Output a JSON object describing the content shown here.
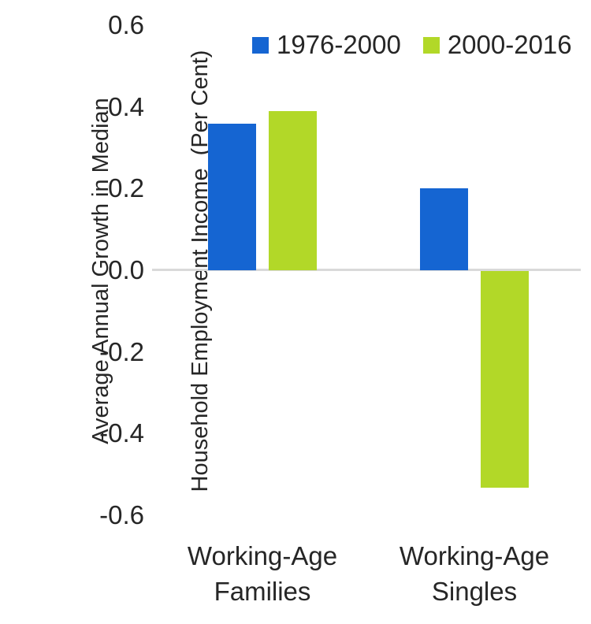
{
  "chart_data": {
    "type": "bar",
    "title": "",
    "ylabel": "Average Annual Growth in Median Household Employment Income (Per Cent)",
    "ylabel_lines": [
      "Average Annual Growth in Median",
      "Household Employment Income  (Per Cent)"
    ],
    "xlabel": "",
    "categories": [
      "Working-Age Families",
      "Working-Age Singles"
    ],
    "category_label_lines": [
      [
        "Working-Age",
        "Families"
      ],
      [
        "Working-Age",
        "Singles"
      ]
    ],
    "series": [
      {
        "name": "1976-2000",
        "color": "#1565d2",
        "values": [
          0.36,
          0.2
        ]
      },
      {
        "name": "2000-2016",
        "color": "#b2d828",
        "values": [
          0.39,
          -0.53
        ]
      }
    ],
    "ylim": [
      -0.6,
      0.6
    ],
    "yticks": [
      0.6,
      0.4,
      0.2,
      0.0,
      -0.2,
      -0.4,
      -0.6
    ],
    "ytick_labels": [
      "0.6",
      "0.4",
      "0.2",
      "0.0",
      "-0.2",
      "-0.4",
      "-0.6"
    ],
    "grid": "zero-baseline-only",
    "legend_position": "top-center",
    "colors": {
      "gridline": "#d9d9d9",
      "text": "#262626",
      "background": "#ffffff"
    }
  }
}
